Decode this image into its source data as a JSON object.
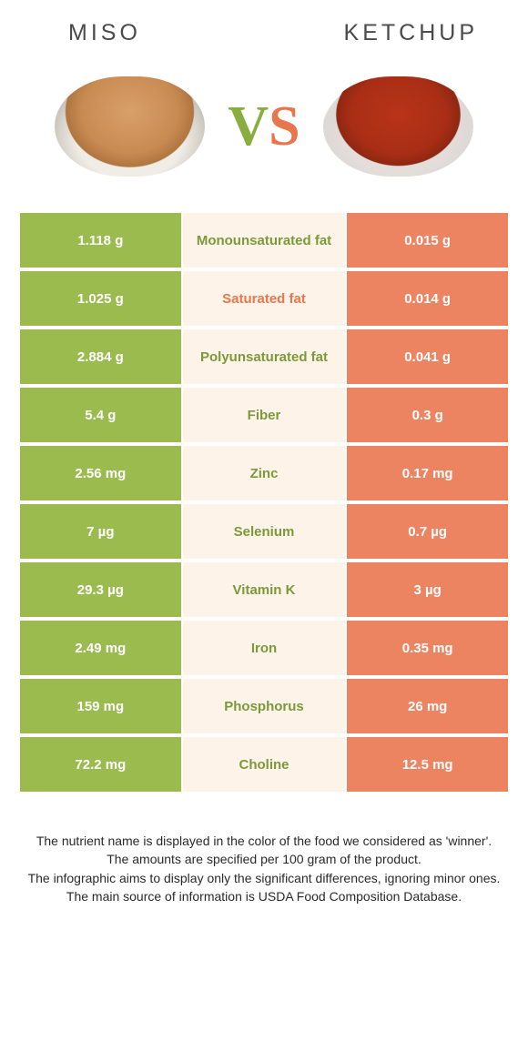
{
  "header": {
    "left_title": "Miso",
    "right_title": "Ketchup"
  },
  "vs": {
    "v": "V",
    "s": "S"
  },
  "colors": {
    "left_bg": "#9bbb4f",
    "right_bg": "#ec8462",
    "mid_bg": "#fdf3e9",
    "left_text": "#7a9a3a",
    "right_text": "#e8764d",
    "sat_fat_text": "#d96a47"
  },
  "rows": [
    {
      "left": "1.118 g",
      "mid": "Monounsaturated fat",
      "right": "0.015 g",
      "mid_color": "#7a9a3a"
    },
    {
      "left": "1.025 g",
      "mid": "Saturated fat",
      "right": "0.014 g",
      "mid_color": "#e8764d"
    },
    {
      "left": "2.884 g",
      "mid": "Polyunsaturated fat",
      "right": "0.041 g",
      "mid_color": "#7a9a3a"
    },
    {
      "left": "5.4 g",
      "mid": "Fiber",
      "right": "0.3 g",
      "mid_color": "#7a9a3a"
    },
    {
      "left": "2.56 mg",
      "mid": "Zinc",
      "right": "0.17 mg",
      "mid_color": "#7a9a3a"
    },
    {
      "left": "7 µg",
      "mid": "Selenium",
      "right": "0.7 µg",
      "mid_color": "#7a9a3a"
    },
    {
      "left": "29.3 µg",
      "mid": "Vitamin K",
      "right": "3 µg",
      "mid_color": "#7a9a3a"
    },
    {
      "left": "2.49 mg",
      "mid": "Iron",
      "right": "0.35 mg",
      "mid_color": "#7a9a3a"
    },
    {
      "left": "159 mg",
      "mid": "Phosphorus",
      "right": "26 mg",
      "mid_color": "#7a9a3a"
    },
    {
      "left": "72.2 mg",
      "mid": "Choline",
      "right": "12.5 mg",
      "mid_color": "#7a9a3a"
    }
  ],
  "footnotes": {
    "l1": "The nutrient name is displayed in the color of the food we considered as 'winner'.",
    "l2": "The amounts are specified per 100 gram of the product.",
    "l3": "The infographic aims to display only the significant differences, ignoring minor ones.",
    "l4": "The main source of information is USDA Food Composition Database."
  }
}
